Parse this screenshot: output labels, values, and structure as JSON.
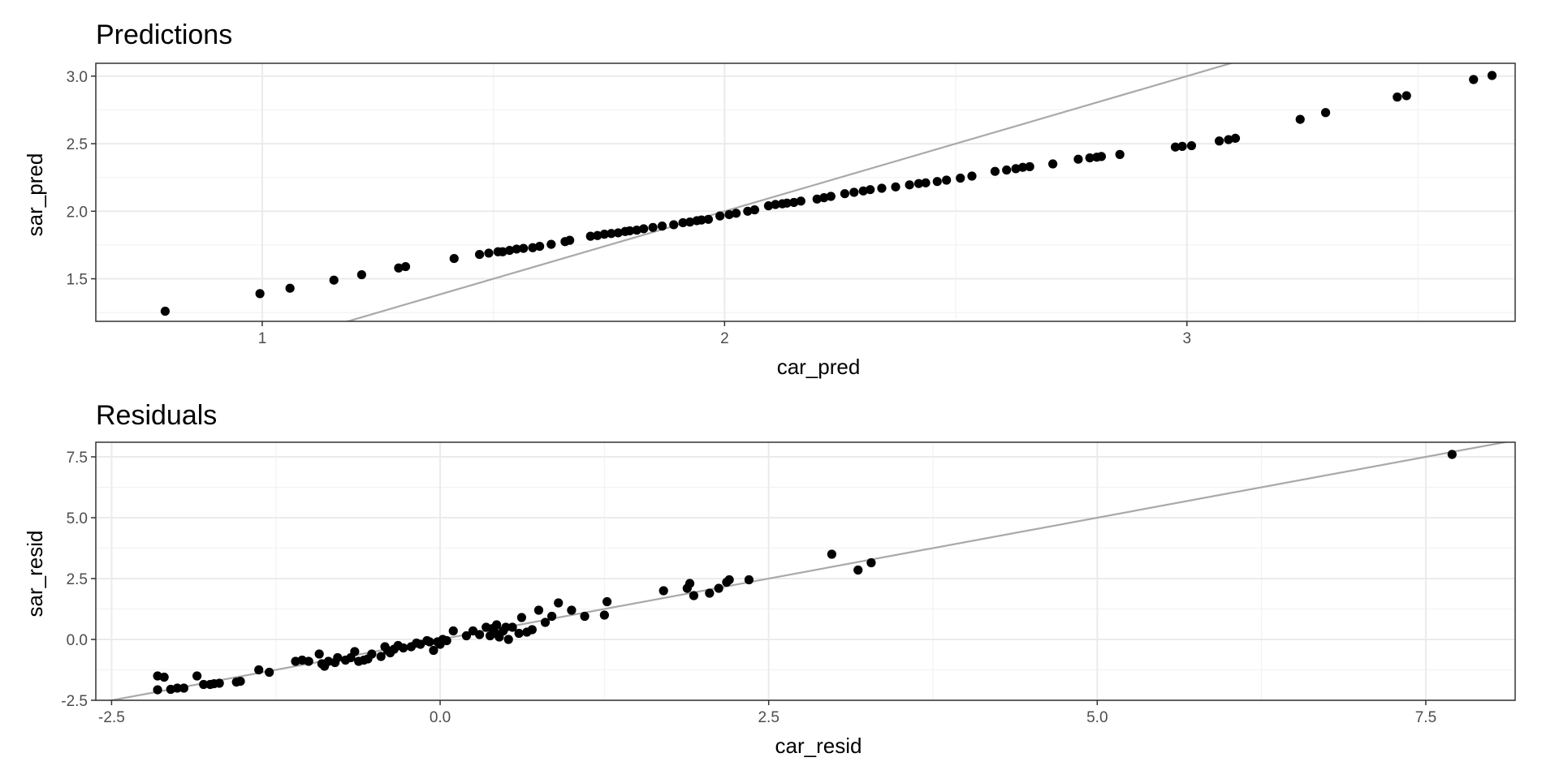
{
  "chart_data": [
    {
      "type": "scatter",
      "title": "Predictions",
      "xlabel": "car_pred",
      "ylabel": "sar_pred",
      "xlim": [
        0.64,
        3.71
      ],
      "ylim": [
        1.185,
        3.095
      ],
      "x_ticks": [
        1,
        2,
        3
      ],
      "x_tick_labels": [
        "1",
        "2",
        "3"
      ],
      "y_ticks": [
        1.5,
        2.0,
        2.5,
        3.0
      ],
      "y_tick_labels": [
        "1.5",
        "2.0",
        "2.5",
        "3.0"
      ],
      "reference_line": {
        "intercept": 0,
        "slope": 1,
        "color": "#a9a9a9"
      },
      "grid": true,
      "legend": "none",
      "points": [
        [
          0.79,
          1.26
        ],
        [
          0.995,
          1.39
        ],
        [
          1.06,
          1.43
        ],
        [
          1.155,
          1.49
        ],
        [
          1.215,
          1.53
        ],
        [
          1.295,
          1.58
        ],
        [
          1.31,
          1.59
        ],
        [
          1.415,
          1.65
        ],
        [
          1.47,
          1.68
        ],
        [
          1.49,
          1.69
        ],
        [
          1.51,
          1.7
        ],
        [
          1.52,
          1.7
        ],
        [
          1.535,
          1.71
        ],
        [
          1.55,
          1.72
        ],
        [
          1.565,
          1.725
        ],
        [
          1.585,
          1.73
        ],
        [
          1.6,
          1.74
        ],
        [
          1.625,
          1.755
        ],
        [
          1.655,
          1.775
        ],
        [
          1.665,
          1.785
        ],
        [
          1.71,
          1.815
        ],
        [
          1.725,
          1.82
        ],
        [
          1.74,
          1.83
        ],
        [
          1.755,
          1.835
        ],
        [
          1.77,
          1.84
        ],
        [
          1.785,
          1.85
        ],
        [
          1.795,
          1.855
        ],
        [
          1.81,
          1.86
        ],
        [
          1.825,
          1.87
        ],
        [
          1.845,
          1.88
        ],
        [
          1.865,
          1.89
        ],
        [
          1.89,
          1.9
        ],
        [
          1.91,
          1.915
        ],
        [
          1.925,
          1.92
        ],
        [
          1.94,
          1.93
        ],
        [
          1.95,
          1.935
        ],
        [
          1.965,
          1.94
        ],
        [
          1.99,
          1.965
        ],
        [
          2.01,
          1.975
        ],
        [
          2.025,
          1.985
        ],
        [
          2.05,
          2.0
        ],
        [
          2.065,
          2.01
        ],
        [
          2.095,
          2.04
        ],
        [
          2.11,
          2.05
        ],
        [
          2.125,
          2.055
        ],
        [
          2.135,
          2.06
        ],
        [
          2.15,
          2.065
        ],
        [
          2.165,
          2.075
        ],
        [
          2.2,
          2.09
        ],
        [
          2.215,
          2.1
        ],
        [
          2.23,
          2.11
        ],
        [
          2.26,
          2.13
        ],
        [
          2.28,
          2.14
        ],
        [
          2.3,
          2.15
        ],
        [
          2.315,
          2.16
        ],
        [
          2.34,
          2.17
        ],
        [
          2.37,
          2.18
        ],
        [
          2.4,
          2.195
        ],
        [
          2.42,
          2.205
        ],
        [
          2.435,
          2.21
        ],
        [
          2.46,
          2.22
        ],
        [
          2.48,
          2.23
        ],
        [
          2.51,
          2.245
        ],
        [
          2.535,
          2.26
        ],
        [
          2.585,
          2.295
        ],
        [
          2.61,
          2.305
        ],
        [
          2.63,
          2.315
        ],
        [
          2.645,
          2.325
        ],
        [
          2.66,
          2.33
        ],
        [
          2.71,
          2.35
        ],
        [
          2.765,
          2.385
        ],
        [
          2.79,
          2.395
        ],
        [
          2.805,
          2.4
        ],
        [
          2.815,
          2.405
        ],
        [
          2.855,
          2.42
        ],
        [
          2.975,
          2.475
        ],
        [
          2.99,
          2.48
        ],
        [
          3.01,
          2.485
        ],
        [
          3.07,
          2.52
        ],
        [
          3.09,
          2.53
        ],
        [
          3.105,
          2.54
        ],
        [
          3.245,
          2.68
        ],
        [
          3.3,
          2.73
        ],
        [
          3.455,
          2.845
        ],
        [
          3.475,
          2.855
        ],
        [
          3.62,
          2.975
        ],
        [
          3.66,
          3.005
        ]
      ]
    },
    {
      "type": "scatter",
      "title": "Residuals",
      "xlabel": "car_resid",
      "ylabel": "sar_resid",
      "xlim": [
        -2.62,
        8.18
      ],
      "ylim": [
        -2.5,
        8.1
      ],
      "x_ticks": [
        -2.5,
        0.0,
        2.5,
        5.0,
        7.5
      ],
      "x_tick_labels": [
        "-2.5",
        "0.0",
        "2.5",
        "5.0",
        "7.5"
      ],
      "y_ticks": [
        -2.5,
        0.0,
        2.5,
        5.0,
        7.5
      ],
      "y_tick_labels": [
        "-2.5",
        "0.0",
        "2.5",
        "5.0",
        "7.5"
      ],
      "reference_line": {
        "intercept": 0,
        "slope": 1,
        "color": "#a9a9a9"
      },
      "grid": true,
      "legend": "none",
      "points": [
        [
          -2.15,
          -2.07
        ],
        [
          -2.15,
          -1.5
        ],
        [
          -2.1,
          -1.55
        ],
        [
          -2.05,
          -2.05
        ],
        [
          -2.0,
          -2.0
        ],
        [
          -1.95,
          -2.0
        ],
        [
          -1.85,
          -1.5
        ],
        [
          -1.8,
          -1.85
        ],
        [
          -1.75,
          -1.85
        ],
        [
          -1.72,
          -1.82
        ],
        [
          -1.68,
          -1.8
        ],
        [
          -1.55,
          -1.75
        ],
        [
          -1.52,
          -1.72
        ],
        [
          -1.38,
          -1.25
        ],
        [
          -1.3,
          -1.35
        ],
        [
          -1.1,
          -0.9
        ],
        [
          -1.05,
          -0.85
        ],
        [
          -1.0,
          -0.9
        ],
        [
          -0.92,
          -0.6
        ],
        [
          -0.9,
          -1.0
        ],
        [
          -0.88,
          -1.1
        ],
        [
          -0.85,
          -0.9
        ],
        [
          -0.8,
          -0.95
        ],
        [
          -0.78,
          -0.75
        ],
        [
          -0.72,
          -0.85
        ],
        [
          -0.68,
          -0.75
        ],
        [
          -0.65,
          -0.5
        ],
        [
          -0.62,
          -0.9
        ],
        [
          -0.58,
          -0.85
        ],
        [
          -0.55,
          -0.8
        ],
        [
          -0.52,
          -0.6
        ],
        [
          -0.45,
          -0.7
        ],
        [
          -0.42,
          -0.3
        ],
        [
          -0.4,
          -0.45
        ],
        [
          -0.38,
          -0.55
        ],
        [
          -0.35,
          -0.4
        ],
        [
          -0.32,
          -0.25
        ],
        [
          -0.28,
          -0.35
        ],
        [
          -0.22,
          -0.3
        ],
        [
          -0.18,
          -0.15
        ],
        [
          -0.15,
          -0.2
        ],
        [
          -0.1,
          -0.05
        ],
        [
          -0.08,
          -0.1
        ],
        [
          -0.05,
          -0.45
        ],
        [
          -0.02,
          -0.1
        ],
        [
          0.0,
          -0.2
        ],
        [
          0.02,
          0.0
        ],
        [
          0.05,
          -0.05
        ],
        [
          0.1,
          0.35
        ],
        [
          0.2,
          0.15
        ],
        [
          0.25,
          0.35
        ],
        [
          0.3,
          0.2
        ],
        [
          0.35,
          0.5
        ],
        [
          0.38,
          0.15
        ],
        [
          0.4,
          0.45
        ],
        [
          0.42,
          0.25
        ],
        [
          0.43,
          0.6
        ],
        [
          0.45,
          0.1
        ],
        [
          0.48,
          0.35
        ],
        [
          0.5,
          0.5
        ],
        [
          0.52,
          0.0
        ],
        [
          0.55,
          0.5
        ],
        [
          0.6,
          0.25
        ],
        [
          0.62,
          0.9
        ],
        [
          0.66,
          0.3
        ],
        [
          0.7,
          0.4
        ],
        [
          0.75,
          1.2
        ],
        [
          0.8,
          0.7
        ],
        [
          0.85,
          0.95
        ],
        [
          0.9,
          1.5
        ],
        [
          1.0,
          1.2
        ],
        [
          1.1,
          0.95
        ],
        [
          1.25,
          1.0
        ],
        [
          1.27,
          1.55
        ],
        [
          1.7,
          2.0
        ],
        [
          1.88,
          2.1
        ],
        [
          1.9,
          2.3
        ],
        [
          1.93,
          1.8
        ],
        [
          2.05,
          1.9
        ],
        [
          2.12,
          2.1
        ],
        [
          2.18,
          2.35
        ],
        [
          2.2,
          2.45
        ],
        [
          2.35,
          2.45
        ],
        [
          2.98,
          3.5
        ],
        [
          3.18,
          2.85
        ],
        [
          3.28,
          3.15
        ],
        [
          7.7,
          7.6
        ]
      ]
    }
  ]
}
